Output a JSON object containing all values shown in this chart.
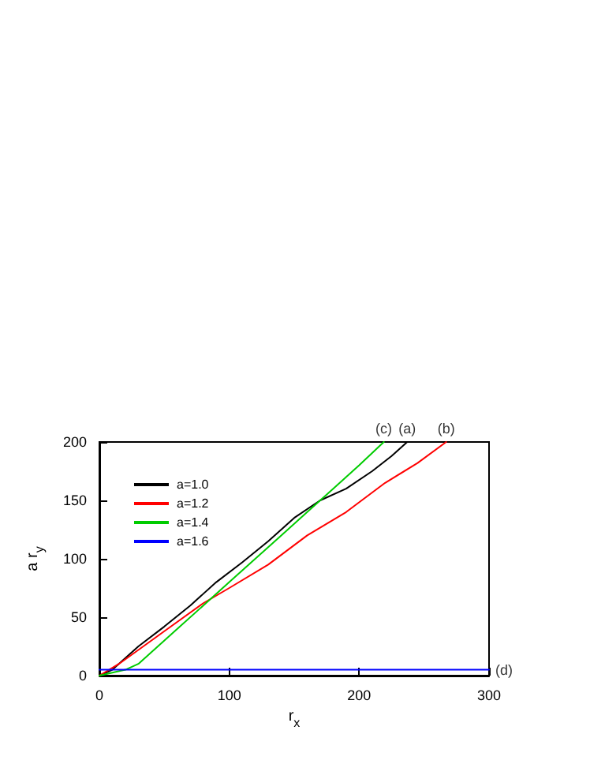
{
  "chart_data": {
    "type": "line",
    "xlabel": "r$_{x}$",
    "ylabel": "a r$_{y}$",
    "xlim": [
      0,
      300
    ],
    "xticks": [
      0,
      100,
      200,
      300
    ],
    "ylim": [
      0,
      200
    ],
    "yticks": [
      0,
      50,
      100,
      150,
      200
    ],
    "grid": false,
    "legend": "top left",
    "marker": "none",
    "line_style": "solid",
    "series": [
      {
        "name": "a=1.0",
        "color": "#000000",
        "x": [
          0,
          10,
          20,
          30,
          50,
          70,
          90,
          110,
          130,
          150,
          170,
          190,
          210,
          225,
          237
        ],
        "values": [
          0,
          5,
          15,
          25,
          42,
          60,
          80,
          97,
          115,
          135,
          150,
          160,
          175,
          188,
          200
        ]
      },
      {
        "name": "a=1.2",
        "color": "#ff0000",
        "x": [
          0,
          15,
          30,
          50,
          80,
          100,
          130,
          160,
          190,
          220,
          245,
          267
        ],
        "values": [
          0,
          10,
          22,
          38,
          62,
          75,
          95,
          120,
          140,
          165,
          182,
          200
        ]
      },
      {
        "name": "a=1.4",
        "color": "#00cc00",
        "x": [
          0,
          20,
          30,
          45,
          60,
          80,
          100,
          120,
          140,
          160,
          180,
          200,
          219
        ],
        "values": [
          0,
          5,
          10,
          25,
          40,
          60,
          80,
          100,
          120,
          140,
          160,
          180,
          200
        ]
      },
      {
        "name": "a=1.6",
        "color": "#0000ff",
        "x": [
          0,
          25,
          50,
          75,
          100,
          125,
          150,
          175,
          200,
          225,
          250,
          275,
          300
        ],
        "values": [
          5,
          5,
          5,
          5,
          5,
          5,
          5,
          5,
          5,
          5,
          5,
          5,
          5
        ]
      }
    ],
    "annotations": [
      {
        "text": "(a)",
        "x": 237,
        "y": 200
      },
      {
        "text": "(b)",
        "x": 267,
        "y": 200
      },
      {
        "text": "(c)",
        "x": 219,
        "y": 200
      },
      {
        "text": "(d)",
        "x": 300,
        "y": 5
      }
    ]
  }
}
